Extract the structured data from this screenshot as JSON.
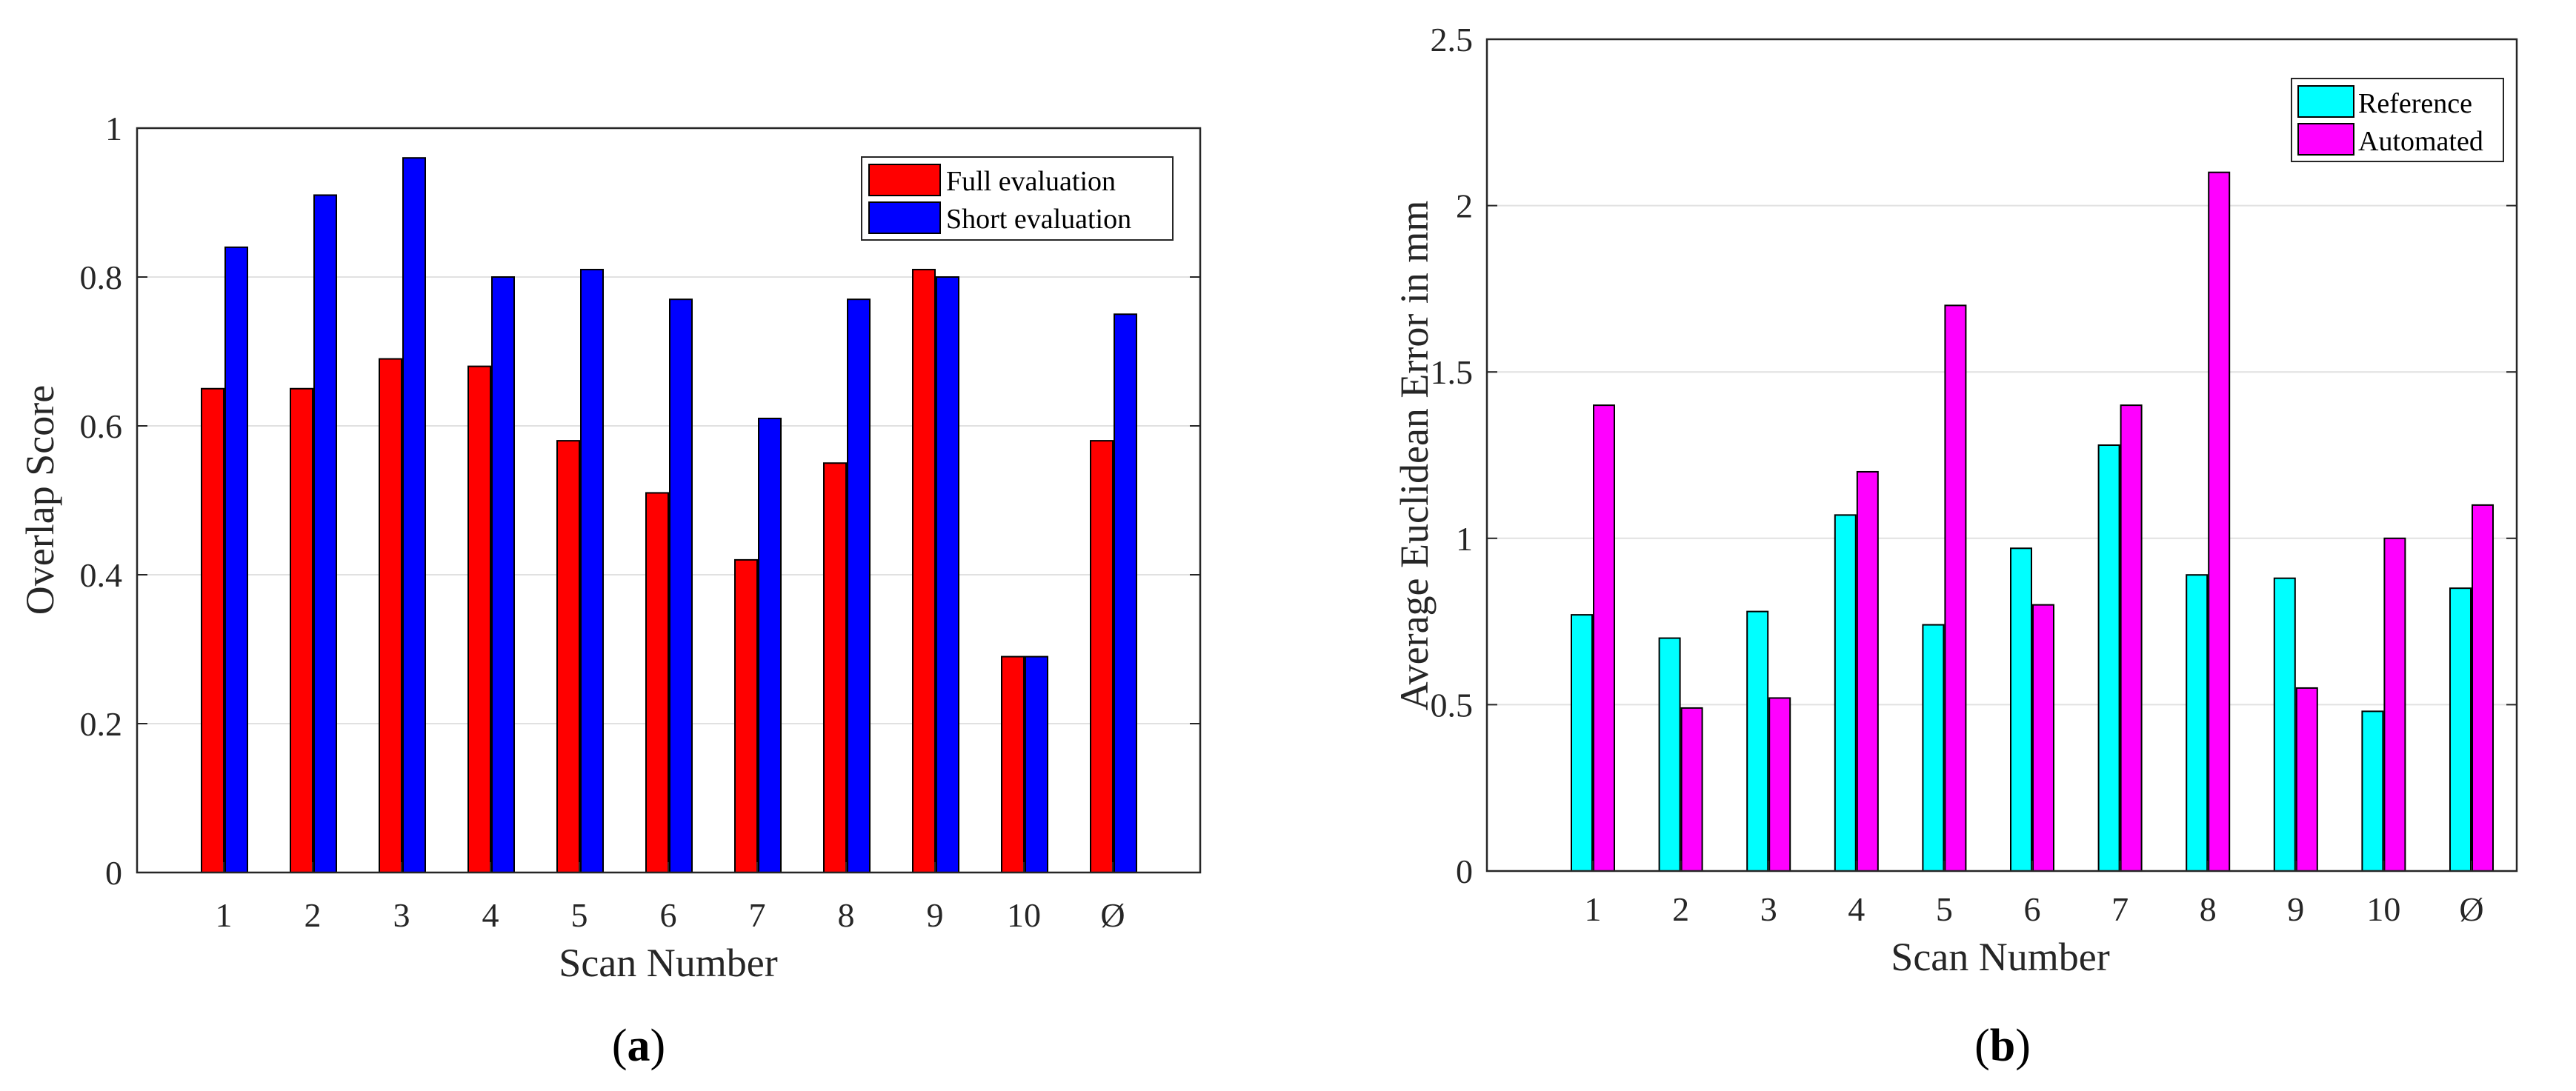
{
  "chart_data": [
    {
      "type": "bar",
      "panel_label": "a",
      "title": "",
      "xlabel": "Scan Number",
      "ylabel": "Overlap Score",
      "categories": [
        "1",
        "2",
        "3",
        "4",
        "5",
        "6",
        "7",
        "8",
        "9",
        "10",
        "Ø"
      ],
      "ylim": [
        0,
        1
      ],
      "yticks": [
        0,
        0.2,
        0.4,
        0.6,
        0.8,
        1
      ],
      "ytick_labels": [
        "0",
        "0.2",
        "0.4",
        "0.6",
        "0.8",
        "1"
      ],
      "grid": "horizontal",
      "legend_position": "top-right",
      "series": [
        {
          "name": "Full evaluation",
          "color": "#ff0000",
          "values": [
            0.65,
            0.65,
            0.69,
            0.68,
            0.58,
            0.51,
            0.42,
            0.55,
            0.81,
            0.29,
            0.58
          ]
        },
        {
          "name": "Short evaluation",
          "color": "#0000ff",
          "values": [
            0.84,
            0.91,
            0.96,
            0.8,
            0.81,
            0.77,
            0.61,
            0.77,
            0.8,
            0.29,
            0.75
          ]
        }
      ]
    },
    {
      "type": "bar",
      "panel_label": "b",
      "title": "",
      "xlabel": "Scan Number",
      "ylabel": "Average Euclidean Error in mm",
      "categories": [
        "1",
        "2",
        "3",
        "4",
        "5",
        "6",
        "7",
        "8",
        "9",
        "10",
        "Ø"
      ],
      "ylim": [
        0,
        2.5
      ],
      "yticks": [
        0,
        0.5,
        1,
        1.5,
        2,
        2.5
      ],
      "ytick_labels": [
        "0",
        "0.5",
        "1",
        "1.5",
        "2",
        "2.5"
      ],
      "grid": "horizontal",
      "legend_position": "top-right",
      "series": [
        {
          "name": "Reference",
          "color": "#00ffff",
          "values": [
            0.77,
            0.7,
            0.78,
            1.07,
            0.74,
            0.97,
            1.28,
            0.89,
            0.88,
            0.48,
            0.85
          ]
        },
        {
          "name": "Automated",
          "color": "#ff00ff",
          "values": [
            1.4,
            0.49,
            0.52,
            1.2,
            1.7,
            0.8,
            1.4,
            2.1,
            0.55,
            1.0,
            1.1
          ]
        }
      ]
    }
  ]
}
